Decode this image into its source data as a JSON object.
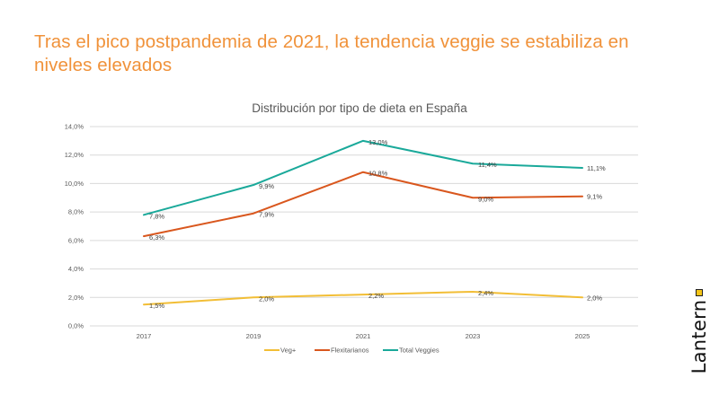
{
  "headline": "Tras el pico postpandemia de 2021, la tendencia veggie se estabiliza en niveles elevados",
  "brand": {
    "name": "Lantern",
    "dot_color": "#F5C518"
  },
  "chart_data": {
    "type": "line",
    "title": "Distribución por tipo de dieta en España",
    "xlabel": "",
    "ylabel": "",
    "categories": [
      "2017",
      "2019",
      "2021",
      "2023",
      "2025"
    ],
    "ylim": [
      0,
      14
    ],
    "yticks": [
      0,
      2,
      4,
      6,
      8,
      10,
      12,
      14
    ],
    "ytick_labels": [
      "0,0%",
      "2,0%",
      "4,0%",
      "6,0%",
      "8,0%",
      "10,0%",
      "12,0%",
      "14,0%"
    ],
    "grid": true,
    "legend_position": "bottom",
    "series": [
      {
        "name": "Veg+",
        "color": "#F2BE36",
        "values": [
          1.5,
          2.0,
          2.2,
          2.4,
          2.0
        ],
        "labels": [
          "1,5%",
          "2,0%",
          "2,2%",
          "2,4%",
          "2,0%"
        ]
      },
      {
        "name": "Flexitarianos",
        "color": "#D9571E",
        "values": [
          6.3,
          7.9,
          10.8,
          9.0,
          9.1
        ],
        "labels": [
          "6,3%",
          "7,9%",
          "10,8%",
          "9,0%",
          "9,1%"
        ]
      },
      {
        "name": "Total Veggies",
        "color": "#1AA99A",
        "values": [
          7.8,
          9.9,
          13.0,
          11.4,
          11.1
        ],
        "labels": [
          "7,8%",
          "9,9%",
          "13,0%",
          "11,4%",
          "11,1%"
        ]
      }
    ]
  }
}
